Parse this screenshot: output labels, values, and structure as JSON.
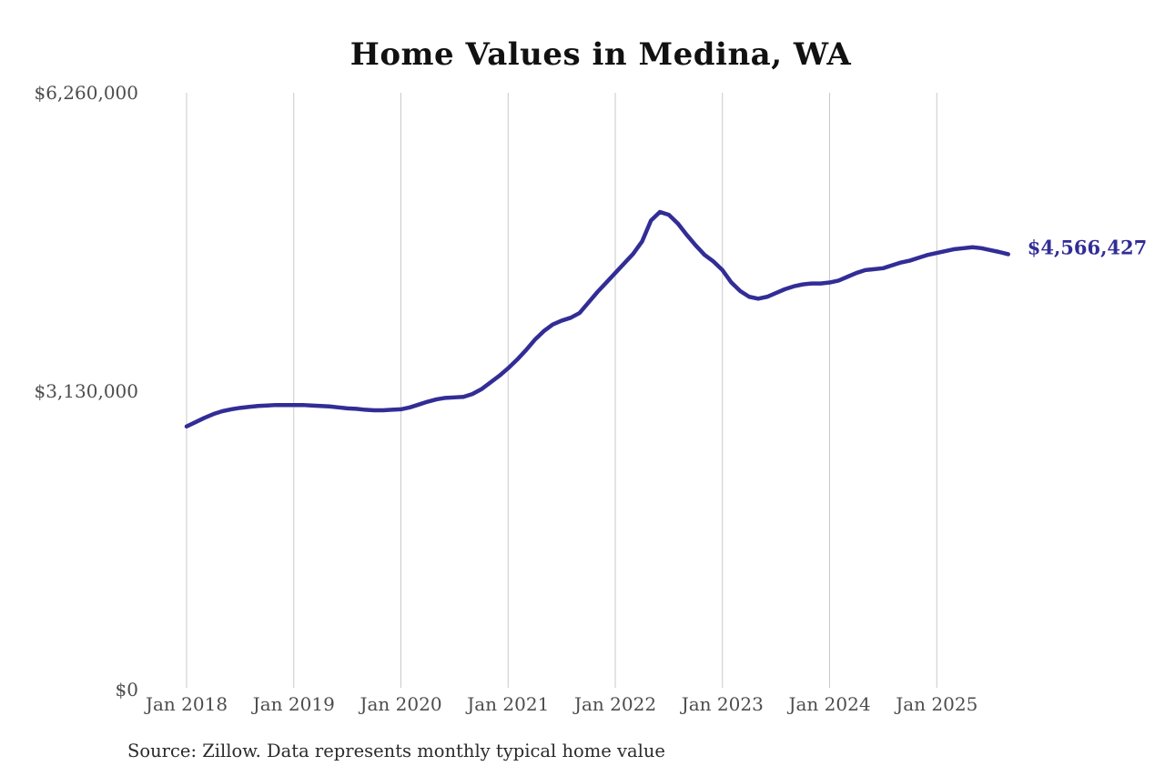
{
  "page": {
    "title": "Home Values in Medina, WA",
    "source_note": "Source: Zillow. Data represents monthly typical home value"
  },
  "colors": {
    "line": "#322d96",
    "grid": "#c9c9c9",
    "axis_text": "#4d4d4d",
    "title_text": "#111111",
    "latest_label_text": "#322d96",
    "background": "#ffffff"
  },
  "chart_data": {
    "type": "line",
    "title": "Home Values in Medina, WA",
    "xlabel": "",
    "ylabel": "",
    "x_tick_labels": [
      "Jan 2018",
      "Jan 2019",
      "Jan 2020",
      "Jan 2021",
      "Jan 2022",
      "Jan 2023",
      "Jan 2024",
      "Jan 2025"
    ],
    "y_ticks": [
      {
        "label": "$0",
        "value": 0
      },
      {
        "label": "$3,130,000",
        "value": 3130000
      },
      {
        "label": "$6,260,000",
        "value": 6260000
      }
    ],
    "ylim": [
      0,
      6260000
    ],
    "grid": "vertical-only",
    "legend": "none",
    "series": [
      {
        "name": "Monthly typical home value",
        "start": "2018-01",
        "end": "2025-09",
        "frequency": "monthly",
        "values": [
          2760000,
          2805000,
          2850000,
          2890000,
          2920000,
          2940000,
          2955000,
          2965000,
          2975000,
          2980000,
          2985000,
          2985000,
          2985000,
          2985000,
          2980000,
          2975000,
          2970000,
          2960000,
          2950000,
          2945000,
          2935000,
          2930000,
          2930000,
          2935000,
          2940000,
          2960000,
          2990000,
          3020000,
          3045000,
          3060000,
          3065000,
          3070000,
          3100000,
          3150000,
          3220000,
          3290000,
          3370000,
          3460000,
          3560000,
          3670000,
          3760000,
          3830000,
          3870000,
          3900000,
          3950000,
          4060000,
          4170000,
          4270000,
          4370000,
          4470000,
          4570000,
          4700000,
          4920000,
          5010000,
          4980000,
          4890000,
          4770000,
          4660000,
          4560000,
          4490000,
          4400000,
          4270000,
          4180000,
          4120000,
          4100000,
          4120000,
          4160000,
          4200000,
          4230000,
          4250000,
          4260000,
          4260000,
          4270000,
          4290000,
          4330000,
          4370000,
          4400000,
          4410000,
          4420000,
          4450000,
          4480000,
          4500000,
          4530000,
          4560000,
          4580000,
          4600000,
          4620000,
          4630000,
          4640000,
          4630000,
          4610000,
          4590000,
          4566427
        ]
      }
    ],
    "last_point": {
      "date": "2025-09",
      "value": 4566427,
      "label": "$4,566,427"
    },
    "source": "Source: Zillow. Data represents monthly typical home value"
  }
}
